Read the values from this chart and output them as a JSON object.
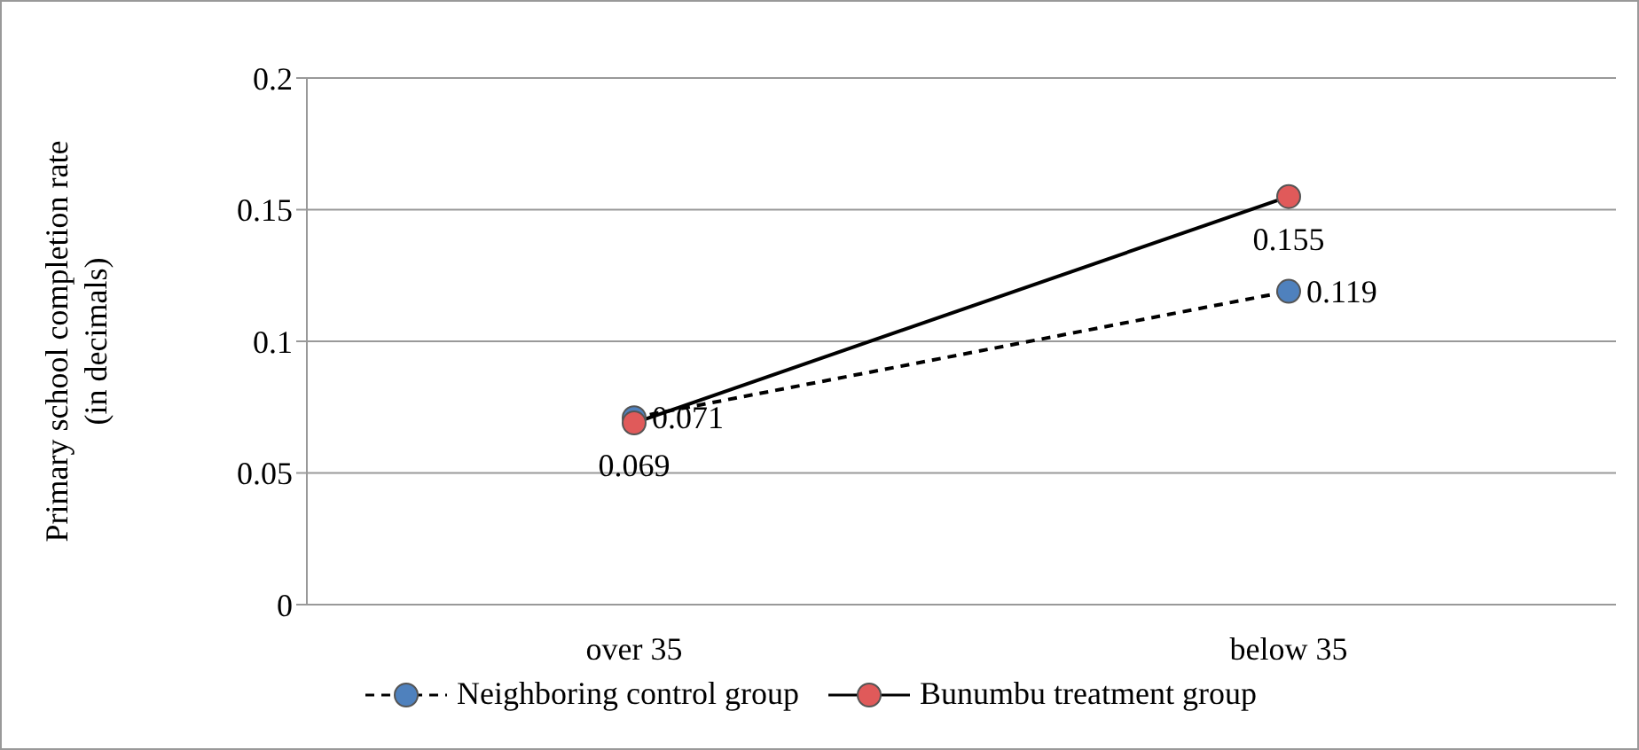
{
  "chart_data": {
    "type": "line",
    "ylabel": "Primary school completion rate (in decimals)",
    "categories": [
      "over 35",
      "below 35"
    ],
    "series": [
      {
        "name": "Neighboring control group",
        "color": "#4f81bd",
        "values": [
          0.071,
          0.119
        ],
        "line_style": "dashed"
      },
      {
        "name": "Bunumbu treatment group",
        "color": "#e05a5a",
        "values": [
          0.069,
          0.155
        ],
        "line_style": "solid"
      }
    ],
    "ylim": [
      0,
      0.2
    ],
    "yticks": [
      0,
      0.05,
      0.1,
      0.15,
      0.2
    ],
    "grid": "y",
    "legend": "bottom",
    "marker": "circle",
    "data_labels": true
  }
}
